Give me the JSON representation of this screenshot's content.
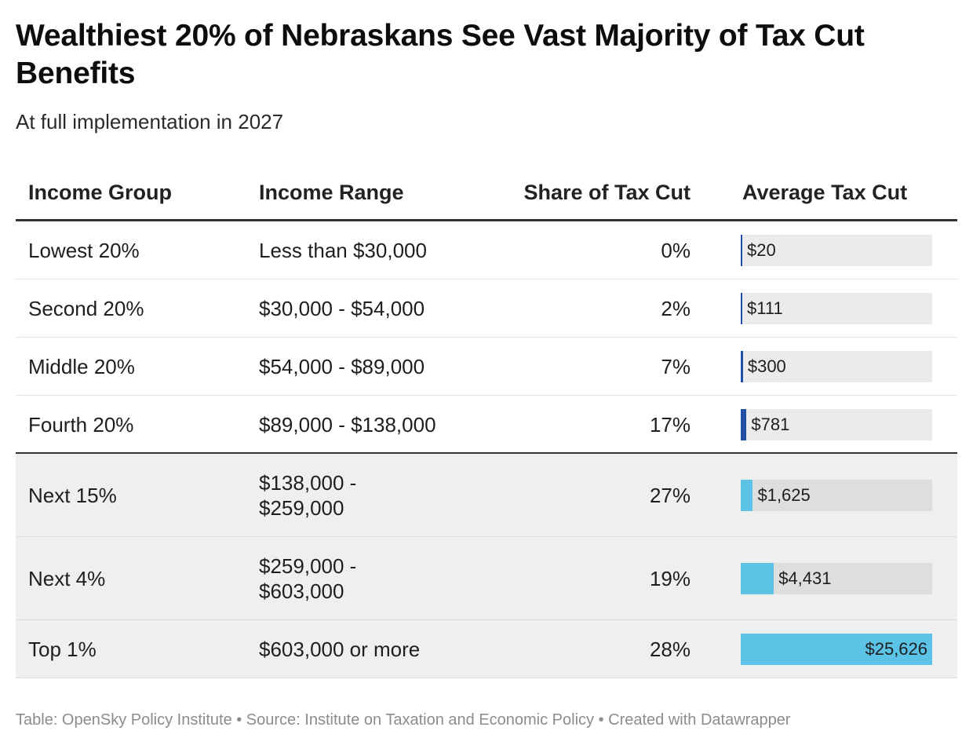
{
  "title": "Wealthiest 20% of Nebraskans See Vast Majority of Tax Cut Benefits",
  "subtitle": "At full implementation in 2027",
  "footer": "Table: OpenSky Policy Institute • Source: Institute on Taxation and Economic Policy • Created with Datawrapper",
  "colors": {
    "bar_dark": "#1f4fa6",
    "bar_light": "#5bc3e6",
    "bar_track": "#ebebeb",
    "shaded_row": "#efefef"
  },
  "chart_data": {
    "type": "table",
    "columns": [
      "Income Group",
      "Income Range",
      "Share of Tax Cut",
      "Average Tax Cut"
    ],
    "bar_column": "Average Tax Cut",
    "bar_max": 25626,
    "rows": [
      {
        "group": "Lowest 20%",
        "range": [
          "Less than $30,000"
        ],
        "share": "0%",
        "avg_label": "$20",
        "avg_value": 20,
        "highlight": false
      },
      {
        "group": "Second 20%",
        "range": [
          "$30,000 - $54,000"
        ],
        "share": "2%",
        "avg_label": "$111",
        "avg_value": 111,
        "highlight": false
      },
      {
        "group": "Middle 20%",
        "range": [
          "$54,000 - $89,000"
        ],
        "share": "7%",
        "avg_label": "$300",
        "avg_value": 300,
        "highlight": false
      },
      {
        "group": "Fourth 20%",
        "range": [
          "$89,000 - $138,000"
        ],
        "share": "17%",
        "avg_label": "$781",
        "avg_value": 781,
        "highlight": false
      },
      {
        "group": "Next 15%",
        "range": [
          "$138,000 -",
          "$259,000"
        ],
        "share": "27%",
        "avg_label": "$1,625",
        "avg_value": 1625,
        "highlight": true
      },
      {
        "group": "Next 4%",
        "range": [
          "$259,000 -",
          "$603,000"
        ],
        "share": "19%",
        "avg_label": "$4,431",
        "avg_value": 4431,
        "highlight": true
      },
      {
        "group": "Top 1%",
        "range": [
          "$603,000 or more"
        ],
        "share": "28%",
        "avg_label": "$25,626",
        "avg_value": 25626,
        "highlight": true
      }
    ]
  }
}
